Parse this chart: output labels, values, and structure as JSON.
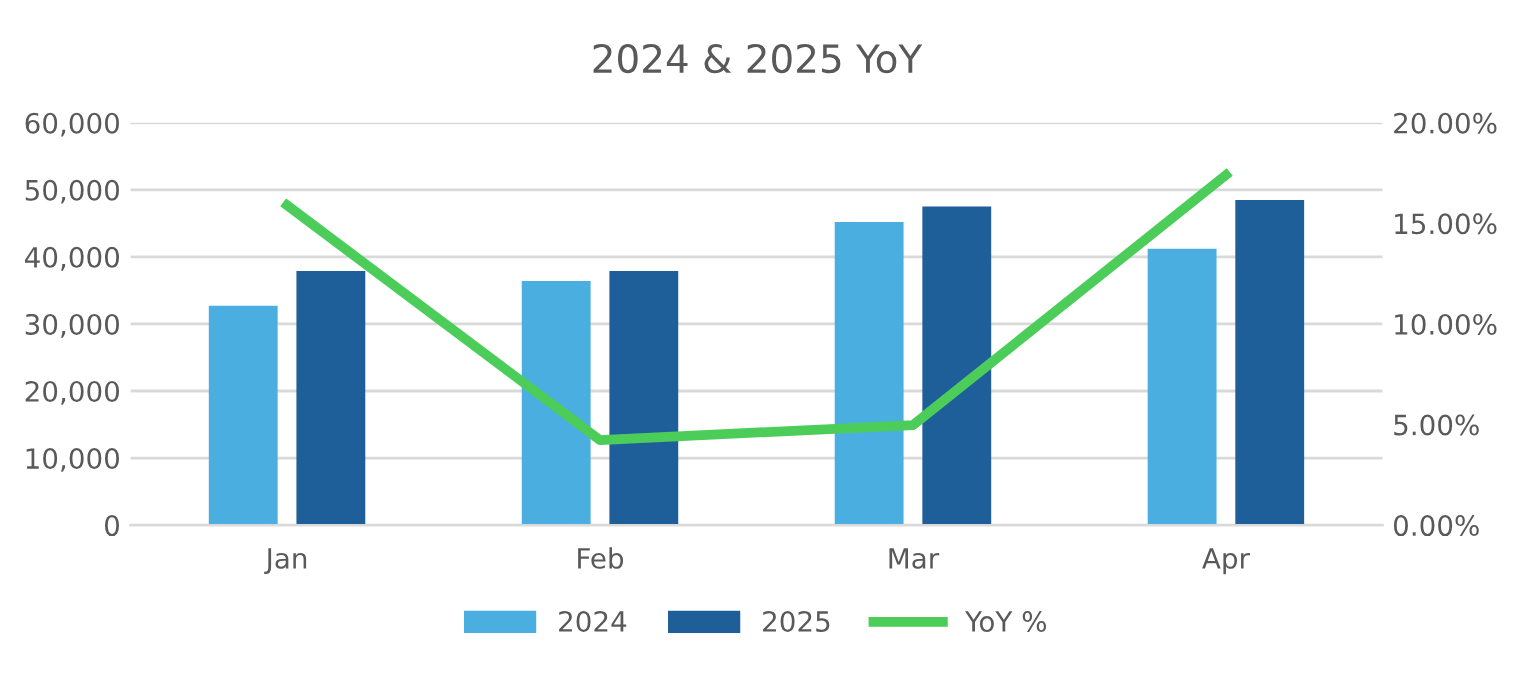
{
  "chart_data": {
    "type": "bar",
    "title": "2024 & 2025 YoY",
    "categories": [
      "Jan",
      "Feb",
      "Mar",
      "Apr"
    ],
    "series": [
      {
        "name": "2024",
        "color": "#4aaee0",
        "values": [
          32700,
          36400,
          45200,
          41200
        ]
      },
      {
        "name": "2025",
        "color": "#1f5f99",
        "values": [
          37900,
          37900,
          47500,
          48500
        ]
      },
      {
        "name": "YoY %",
        "type": "line",
        "axis": "y2",
        "color": "#4ccd5a",
        "values": [
          15.9,
          4.23,
          4.97,
          17.4
        ]
      }
    ],
    "ylim": [
      0,
      60000
    ],
    "yticks": [
      {
        "value": 0,
        "label": "0"
      },
      {
        "value": 10000,
        "label": "10,000"
      },
      {
        "value": 20000,
        "label": "20,000"
      },
      {
        "value": 30000,
        "label": "30,000"
      },
      {
        "value": 40000,
        "label": "40,000"
      },
      {
        "value": 50000,
        "label": "50,000"
      },
      {
        "value": 60000,
        "label": "60,000"
      }
    ],
    "y2lim": [
      0,
      20
    ],
    "y2ticks": [
      {
        "value": 0,
        "label": "0.00%"
      },
      {
        "value": 5,
        "label": "5.00%"
      },
      {
        "value": 10,
        "label": "10.00%"
      },
      {
        "value": 15,
        "label": "15.00%"
      },
      {
        "value": 20,
        "label": "20.00%"
      }
    ],
    "grid": "y",
    "legend": "bottom",
    "marker": "none"
  }
}
